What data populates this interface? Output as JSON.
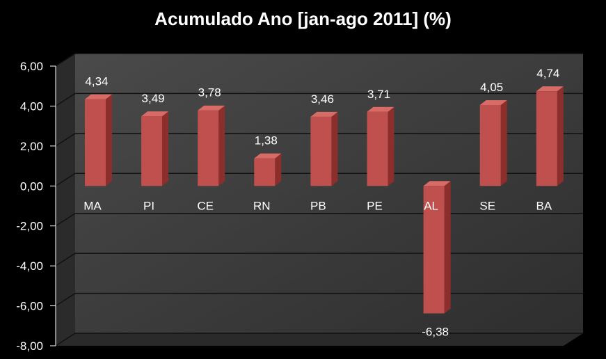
{
  "chart_data": {
    "type": "bar",
    "title": "Acumulado Ano [jan-ago 2011] (%)",
    "categories": [
      "MA",
      "PI",
      "CE",
      "RN",
      "PB",
      "PE",
      "AL",
      "SE",
      "BA"
    ],
    "values": [
      4.34,
      3.49,
      3.78,
      1.38,
      3.46,
      3.71,
      -6.38,
      4.05,
      4.74
    ],
    "data_labels": [
      "4,34",
      "3,49",
      "3,78",
      "1,38",
      "3,46",
      "3,71",
      "-6,38",
      "4,05",
      "4,74"
    ],
    "y_ticks": [
      6,
      4,
      2,
      0,
      -2,
      -4,
      -6,
      -8
    ],
    "y_tick_labels": [
      "6,00",
      "4,00",
      "2,00",
      "0,00",
      "-2,00",
      "-4,00",
      "-6,00",
      "-8,00"
    ],
    "ylim": [
      -8,
      6
    ],
    "xlabel": "",
    "ylabel": "",
    "grid": true,
    "legend": "none",
    "colors": {
      "background": "#000000",
      "bar_front": "#c0504d",
      "bar_side": "#8c2f2c",
      "bar_top": "#d96b67",
      "wall": "#3f3f3f",
      "floor": "#2a2a2a",
      "gridline": "#111111",
      "text": "#ffffff"
    }
  }
}
